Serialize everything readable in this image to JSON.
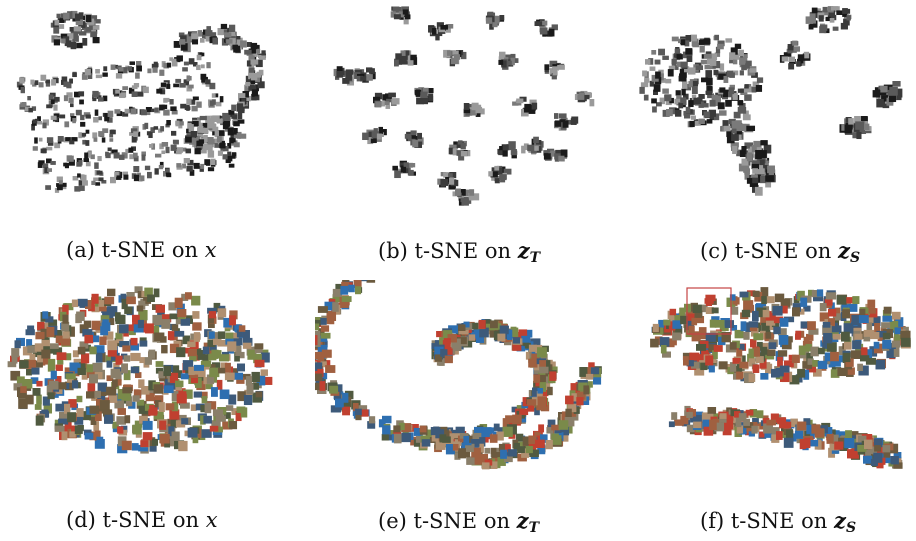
{
  "figure": {
    "captions": [
      {
        "letter": "(a)",
        "method": "t-SNE on",
        "var": "x",
        "sub": ""
      },
      {
        "letter": "(b)",
        "method": "t-SNE on",
        "var": "z",
        "sub": "T"
      },
      {
        "letter": "(c)",
        "method": "t-SNE on",
        "var": "z",
        "sub": "S"
      },
      {
        "letter": "(d)",
        "method": "t-SNE on",
        "var": "x",
        "sub": ""
      },
      {
        "letter": "(e)",
        "method": "t-SNE on",
        "var": "z",
        "sub": "T"
      },
      {
        "letter": "(f)",
        "method": "t-SNE on",
        "var": "z",
        "sub": "S"
      }
    ],
    "colors": {
      "grayscale_thumbs": [
        "#1a1a1a",
        "#3a3a3a",
        "#5a5a5a",
        "#7a7a7a",
        "#9a9a9a"
      ],
      "color_thumbs": [
        "#6b5a3f",
        "#3d5a7a",
        "#7a8a4a",
        "#a06040",
        "#2e6fb0",
        "#8a7f6a",
        "#505a40",
        "#b09070",
        "#c04030"
      ],
      "highlight_box": "#c44444"
    }
  }
}
